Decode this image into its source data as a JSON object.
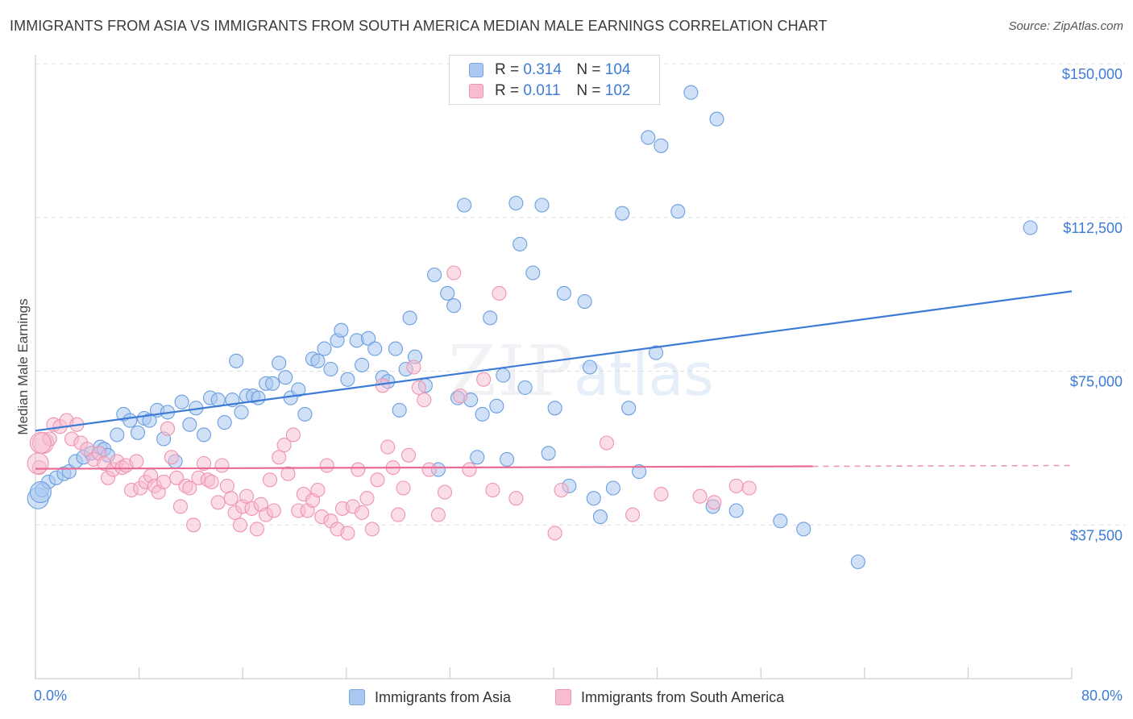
{
  "title": "IMMIGRANTS FROM ASIA VS IMMIGRANTS FROM SOUTH AMERICA MEDIAN MALE EARNINGS CORRELATION CHART",
  "source": "Source: ZipAtlas.com",
  "watermark": {
    "zip": "ZIP",
    "atlas": "atlas"
  },
  "legend": {
    "r_label": "R =",
    "n_label": "N =",
    "series": [
      {
        "name": "Immigrants from Asia",
        "r": "0.314",
        "n": "104",
        "color": "#3d7bd6",
        "fill": "#aac8f0"
      },
      {
        "name": "Immigrants from South America",
        "r": "0.011",
        "n": "102",
        "color": "#e96a95",
        "fill": "#f7bccf"
      }
    ]
  },
  "chart_data": {
    "type": "scatter",
    "title": "IMMIGRANTS FROM ASIA VS IMMIGRANTS FROM SOUTH AMERICA MEDIAN MALE EARNINGS CORRELATION CHART",
    "ylabel": "Median Male Earnings",
    "xlabel": "",
    "xlim": [
      0,
      80
    ],
    "ylim": [
      0,
      153750
    ],
    "x_tick_labels": {
      "min": "0.0%",
      "max": "80.0%"
    },
    "y_ticks": [
      {
        "value": 37500,
        "label": "$37,500"
      },
      {
        "value": 75000,
        "label": "$75,000"
      },
      {
        "value": 112500,
        "label": "$112,500"
      },
      {
        "value": 150000,
        "label": "$150,000"
      }
    ],
    "grid": true,
    "legend_position": "top-center",
    "series": [
      {
        "name": "Immigrants from Asia",
        "color": "#3d7bd6",
        "trend": {
          "x": [
            0,
            80
          ],
          "y": [
            60500,
            94500
          ],
          "style": "solid"
        },
        "points": [
          [
            0.2,
            44000
          ],
          [
            0.5,
            46000
          ],
          [
            1.0,
            48000
          ],
          [
            1.6,
            49000
          ],
          [
            2.2,
            50000
          ],
          [
            2.6,
            50500
          ],
          [
            3.1,
            53000
          ],
          [
            3.7,
            54000
          ],
          [
            4.3,
            55000
          ],
          [
            5.0,
            56500
          ],
          [
            5.3,
            56000
          ],
          [
            5.6,
            54500
          ],
          [
            6.3,
            59500
          ],
          [
            6.8,
            64500
          ],
          [
            7.3,
            63000
          ],
          [
            7.9,
            60000
          ],
          [
            8.4,
            63500
          ],
          [
            8.8,
            63000
          ],
          [
            9.4,
            65500
          ],
          [
            9.9,
            58500
          ],
          [
            10.2,
            65000
          ],
          [
            10.8,
            53000
          ],
          [
            11.3,
            67500
          ],
          [
            11.9,
            62000
          ],
          [
            12.4,
            66000
          ],
          [
            13.0,
            59500
          ],
          [
            13.5,
            68500
          ],
          [
            14.1,
            68000
          ],
          [
            14.6,
            62500
          ],
          [
            15.2,
            68000
          ],
          [
            15.5,
            77500
          ],
          [
            15.9,
            65000
          ],
          [
            16.3,
            69000
          ],
          [
            16.8,
            69000
          ],
          [
            17.2,
            68500
          ],
          [
            17.8,
            72000
          ],
          [
            18.3,
            72000
          ],
          [
            18.8,
            77000
          ],
          [
            19.3,
            73500
          ],
          [
            19.7,
            68500
          ],
          [
            20.3,
            70500
          ],
          [
            20.8,
            64500
          ],
          [
            21.4,
            78000
          ],
          [
            21.8,
            77500
          ],
          [
            22.3,
            80500
          ],
          [
            22.8,
            75500
          ],
          [
            23.3,
            82500
          ],
          [
            23.6,
            85000
          ],
          [
            24.1,
            73000
          ],
          [
            24.8,
            82500
          ],
          [
            25.2,
            76500
          ],
          [
            25.7,
            83000
          ],
          [
            26.2,
            80500
          ],
          [
            26.8,
            73500
          ],
          [
            27.2,
            72500
          ],
          [
            27.8,
            80500
          ],
          [
            28.1,
            65500
          ],
          [
            28.6,
            75500
          ],
          [
            28.9,
            88000
          ],
          [
            29.3,
            78500
          ],
          [
            30.1,
            71500
          ],
          [
            30.8,
            98500
          ],
          [
            31.1,
            51000
          ],
          [
            31.8,
            94000
          ],
          [
            32.3,
            91000
          ],
          [
            32.6,
            68500
          ],
          [
            33.1,
            115500
          ],
          [
            33.6,
            68000
          ],
          [
            34.1,
            54000
          ],
          [
            34.5,
            64500
          ],
          [
            35.1,
            88000
          ],
          [
            35.6,
            66500
          ],
          [
            36.1,
            74000
          ],
          [
            36.4,
            53500
          ],
          [
            37.1,
            116000
          ],
          [
            37.4,
            106000
          ],
          [
            37.8,
            71000
          ],
          [
            38.4,
            99000
          ],
          [
            39.1,
            115500
          ],
          [
            39.6,
            55000
          ],
          [
            40.1,
            66000
          ],
          [
            40.8,
            94000
          ],
          [
            41.2,
            47000
          ],
          [
            42.4,
            92000
          ],
          [
            42.8,
            76000
          ],
          [
            43.1,
            44000
          ],
          [
            43.6,
            39500
          ],
          [
            44.6,
            46500
          ],
          [
            45.3,
            113500
          ],
          [
            45.8,
            66000
          ],
          [
            46.6,
            50500
          ],
          [
            47.3,
            132000
          ],
          [
            47.9,
            79500
          ],
          [
            48.3,
            130000
          ],
          [
            49.6,
            114000
          ],
          [
            50.6,
            143000
          ],
          [
            52.3,
            42000
          ],
          [
            52.6,
            136500
          ],
          [
            54.1,
            41000
          ],
          [
            57.5,
            38500
          ],
          [
            59.3,
            36500
          ],
          [
            63.5,
            28500
          ],
          [
            76.8,
            110000
          ],
          [
            0.4,
            45500
          ]
        ]
      },
      {
        "name": "Immigrants from South America",
        "color": "#e96a95",
        "trend": {
          "x": [
            0,
            60
          ],
          "y": [
            51200,
            51800
          ],
          "style": "solid",
          "extend_to": 80,
          "extend_style": "dashed"
        },
        "points": [
          [
            0.3,
            51500
          ],
          [
            0.6,
            57500
          ],
          [
            1.1,
            58500
          ],
          [
            1.4,
            62000
          ],
          [
            1.9,
            61500
          ],
          [
            2.4,
            63000
          ],
          [
            2.8,
            58500
          ],
          [
            3.2,
            62000
          ],
          [
            3.5,
            57500
          ],
          [
            4.0,
            56000
          ],
          [
            4.5,
            53500
          ],
          [
            4.9,
            55000
          ],
          [
            5.3,
            52500
          ],
          [
            5.6,
            49000
          ],
          [
            6.0,
            51000
          ],
          [
            6.3,
            53000
          ],
          [
            6.7,
            51500
          ],
          [
            7.0,
            52000
          ],
          [
            7.4,
            46000
          ],
          [
            7.8,
            53000
          ],
          [
            8.1,
            46500
          ],
          [
            8.5,
            48000
          ],
          [
            8.9,
            49500
          ],
          [
            9.2,
            47000
          ],
          [
            9.5,
            45500
          ],
          [
            9.9,
            48000
          ],
          [
            10.2,
            61000
          ],
          [
            10.5,
            54000
          ],
          [
            10.9,
            49000
          ],
          [
            11.2,
            42000
          ],
          [
            11.6,
            47000
          ],
          [
            11.9,
            46500
          ],
          [
            12.2,
            37500
          ],
          [
            12.6,
            49000
          ],
          [
            13.0,
            52500
          ],
          [
            13.3,
            48500
          ],
          [
            13.6,
            48000
          ],
          [
            14.1,
            43000
          ],
          [
            14.4,
            52000
          ],
          [
            14.8,
            47000
          ],
          [
            15.1,
            44000
          ],
          [
            15.4,
            40500
          ],
          [
            15.8,
            37500
          ],
          [
            16.0,
            42000
          ],
          [
            16.3,
            44500
          ],
          [
            16.7,
            41500
          ],
          [
            17.1,
            36500
          ],
          [
            17.4,
            42500
          ],
          [
            17.8,
            40000
          ],
          [
            18.1,
            48500
          ],
          [
            18.4,
            41000
          ],
          [
            18.8,
            54000
          ],
          [
            19.2,
            57000
          ],
          [
            19.5,
            50000
          ],
          [
            19.9,
            59500
          ],
          [
            20.3,
            41000
          ],
          [
            20.7,
            45000
          ],
          [
            21.0,
            41000
          ],
          [
            21.4,
            43500
          ],
          [
            21.8,
            46000
          ],
          [
            22.1,
            39500
          ],
          [
            22.5,
            52000
          ],
          [
            22.8,
            38500
          ],
          [
            23.3,
            36500
          ],
          [
            23.7,
            41500
          ],
          [
            24.1,
            35500
          ],
          [
            24.5,
            42000
          ],
          [
            24.9,
            51000
          ],
          [
            25.2,
            40500
          ],
          [
            25.6,
            44000
          ],
          [
            26.0,
            36500
          ],
          [
            26.4,
            48500
          ],
          [
            26.8,
            71500
          ],
          [
            27.2,
            56500
          ],
          [
            27.6,
            51500
          ],
          [
            28.0,
            40000
          ],
          [
            28.4,
            46500
          ],
          [
            28.8,
            54500
          ],
          [
            29.2,
            76000
          ],
          [
            29.6,
            71000
          ],
          [
            30.0,
            68000
          ],
          [
            30.4,
            51000
          ],
          [
            31.1,
            40000
          ],
          [
            31.6,
            45500
          ],
          [
            32.3,
            99000
          ],
          [
            32.8,
            69000
          ],
          [
            33.5,
            51000
          ],
          [
            34.6,
            73000
          ],
          [
            35.3,
            46000
          ],
          [
            35.8,
            94000
          ],
          [
            37.1,
            44000
          ],
          [
            40.1,
            35500
          ],
          [
            40.6,
            46000
          ],
          [
            44.1,
            57500
          ],
          [
            46.1,
            40000
          ],
          [
            48.3,
            45000
          ],
          [
            51.3,
            44500
          ],
          [
            52.4,
            43000
          ],
          [
            54.1,
            47000
          ],
          [
            55.1,
            46500
          ],
          [
            0.2,
            52500
          ],
          [
            0.4,
            57500
          ]
        ]
      }
    ]
  }
}
